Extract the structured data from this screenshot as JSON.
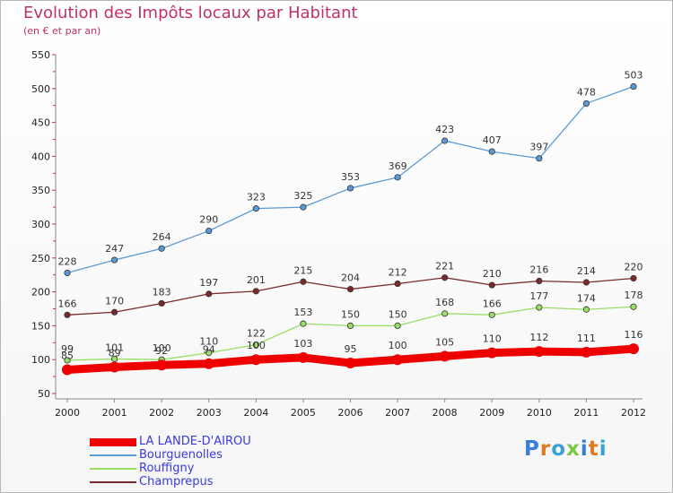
{
  "header": {
    "title": "Evolution des Impôts locaux par Habitant",
    "subtitle": "(en € et par an)"
  },
  "logo": {
    "text": "Proxiti"
  },
  "chart_data": {
    "type": "line",
    "title": "Evolution des Impôts locaux par Habitant",
    "subtitle": "(en € et par an)",
    "xlabel": "",
    "ylabel": "",
    "x": [
      2000,
      2001,
      2002,
      2003,
      2004,
      2005,
      2006,
      2007,
      2008,
      2009,
      2010,
      2011,
      2012
    ],
    "ylim": [
      50,
      550
    ],
    "yticks": [
      50,
      100,
      150,
      200,
      250,
      300,
      350,
      400,
      450,
      500,
      550
    ],
    "grid": false,
    "legend_position": "bottom-left",
    "series": [
      {
        "name": "LA LANDE-D'AIROU",
        "color": "#ee0000",
        "values": [
          85,
          89,
          92,
          94,
          100,
          103,
          95,
          100,
          105,
          110,
          112,
          111,
          116
        ]
      },
      {
        "name": "Bourguenolles",
        "color": "#5b9bd5",
        "values": [
          228,
          247,
          264,
          290,
          323,
          325,
          353,
          369,
          423,
          407,
          397,
          478,
          503
        ]
      },
      {
        "name": "Rouffigny",
        "color": "#99dd66",
        "values": [
          99,
          101,
          100,
          110,
          122,
          153,
          150,
          150,
          168,
          166,
          177,
          174,
          178
        ]
      },
      {
        "name": "Champrepus",
        "color": "#7a2a2a",
        "values": [
          166,
          170,
          183,
          197,
          201,
          215,
          204,
          212,
          221,
          210,
          216,
          214,
          220
        ]
      }
    ]
  }
}
